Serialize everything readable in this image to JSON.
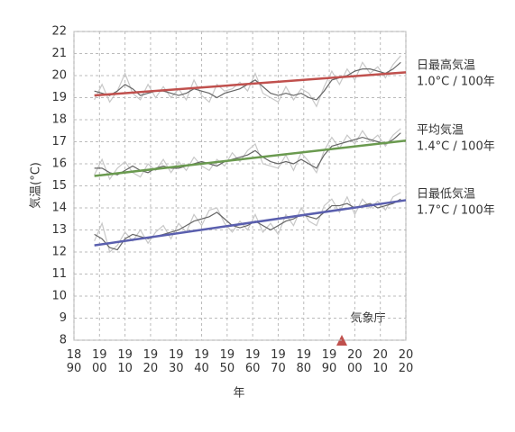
{
  "chart_data": {
    "type": "line",
    "y_label": "気温(°C)",
    "x_label": "年",
    "source": "気象庁",
    "xlim": [
      1890,
      2020
    ],
    "ylim": [
      8,
      22
    ],
    "xticks": [
      {
        "value": 1890,
        "label": "18\n90"
      },
      {
        "value": 1900,
        "label": "19\n00"
      },
      {
        "value": 1910,
        "label": "19\n10"
      },
      {
        "value": 1920,
        "label": "19\n20"
      },
      {
        "value": 1930,
        "label": "19\n30"
      },
      {
        "value": 1940,
        "label": "19\n40"
      },
      {
        "value": 1950,
        "label": "19\n50"
      },
      {
        "value": 1960,
        "label": "19\n60"
      },
      {
        "value": 1970,
        "label": "19\n70"
      },
      {
        "value": 1980,
        "label": "19\n80"
      },
      {
        "value": 1990,
        "label": "19\n90"
      },
      {
        "value": 2000,
        "label": "20\n00"
      },
      {
        "value": 2010,
        "label": "20\n10"
      },
      {
        "value": 2020,
        "label": "20\n20"
      }
    ],
    "yticks": [
      8,
      9,
      10,
      11,
      12,
      13,
      14,
      15,
      16,
      17,
      18,
      19,
      20,
      21,
      22
    ],
    "grid": true,
    "annual_color": "#c8c8c8",
    "moving_average_color": "#666666",
    "x": [
      1898,
      1901,
      1904,
      1907,
      1910,
      1913,
      1916,
      1919,
      1922,
      1925,
      1928,
      1931,
      1934,
      1937,
      1940,
      1943,
      1946,
      1949,
      1952,
      1955,
      1958,
      1961,
      1964,
      1967,
      1970,
      1973,
      1976,
      1979,
      1982,
      1985,
      1988,
      1991,
      1994,
      1997,
      2000,
      2003,
      2006,
      2009,
      2012,
      2015,
      2018
    ],
    "trend_x": [
      1898,
      2020
    ],
    "series": [
      {
        "name": "日最高気温",
        "trend_label": "1.0°C / 100年",
        "color": "#c0504d",
        "annual_values": [
          18.9,
          19.6,
          18.8,
          19.3,
          20.1,
          19.2,
          18.9,
          19.6,
          19.0,
          19.5,
          19.0,
          19.4,
          18.9,
          19.8,
          19.1,
          18.8,
          19.6,
          19.3,
          19.4,
          19.7,
          19.3,
          20.1,
          19.2,
          19.0,
          18.8,
          19.5,
          18.9,
          19.4,
          19.2,
          18.6,
          19.5,
          20.2,
          19.6,
          20.3,
          19.8,
          20.6,
          20.1,
          20.4,
          19.9,
          20.5,
          20.9
        ],
        "moving_average": [
          19.3,
          19.2,
          19.1,
          19.3,
          19.6,
          19.4,
          19.1,
          19.2,
          19.3,
          19.3,
          19.2,
          19.1,
          19.2,
          19.4,
          19.3,
          19.2,
          19.0,
          19.2,
          19.3,
          19.4,
          19.6,
          19.8,
          19.5,
          19.2,
          19.1,
          19.2,
          19.1,
          19.2,
          19.0,
          18.9,
          19.3,
          19.8,
          19.9,
          20.0,
          20.2,
          20.3,
          20.3,
          20.2,
          20.1,
          20.3,
          20.6
        ],
        "trend_values": [
          19.1,
          20.15
        ]
      },
      {
        "name": "平均気温",
        "trend_label": "1.4°C / 100年",
        "color": "#6a9a4f",
        "annual_values": [
          15.5,
          16.2,
          15.3,
          15.8,
          16.1,
          15.6,
          15.4,
          16.0,
          15.7,
          16.2,
          15.6,
          16.1,
          15.7,
          16.3,
          15.9,
          15.7,
          16.2,
          15.9,
          16.5,
          16.1,
          16.6,
          16.9,
          16.0,
          15.9,
          15.8,
          16.4,
          15.7,
          16.5,
          16.1,
          15.6,
          16.6,
          17.2,
          16.7,
          17.3,
          16.9,
          17.5,
          17.0,
          17.3,
          16.8,
          17.3,
          17.6
        ],
        "moving_average": [
          15.8,
          15.8,
          15.6,
          15.5,
          15.7,
          15.9,
          15.7,
          15.6,
          15.8,
          15.9,
          15.8,
          15.8,
          15.9,
          16.0,
          16.1,
          16.0,
          15.9,
          16.1,
          16.2,
          16.3,
          16.4,
          16.6,
          16.3,
          16.1,
          16.0,
          16.1,
          16.0,
          16.2,
          16.0,
          15.8,
          16.4,
          16.8,
          16.9,
          17.0,
          17.1,
          17.2,
          17.1,
          17.0,
          16.9,
          17.1,
          17.4
        ],
        "trend_values": [
          15.45,
          17.05
        ]
      },
      {
        "name": "日最低気温",
        "trend_label": "1.7°C / 100年",
        "color": "#5a5fae",
        "annual_values": [
          12.5,
          13.3,
          12.0,
          12.3,
          12.9,
          12.5,
          13.0,
          12.4,
          12.9,
          13.2,
          12.6,
          13.3,
          12.9,
          13.7,
          13.2,
          13.9,
          14.0,
          13.3,
          12.9,
          13.4,
          13.0,
          13.7,
          12.9,
          13.3,
          12.8,
          13.7,
          13.2,
          14.0,
          13.4,
          13.2,
          14.1,
          14.4,
          13.8,
          14.5,
          13.7,
          14.4,
          14.0,
          14.3,
          13.9,
          14.5,
          14.7
        ],
        "moving_average": [
          12.8,
          12.6,
          12.2,
          12.1,
          12.6,
          12.8,
          12.7,
          12.6,
          12.7,
          12.8,
          12.9,
          13.0,
          13.2,
          13.4,
          13.5,
          13.6,
          13.8,
          13.5,
          13.2,
          13.1,
          13.2,
          13.4,
          13.2,
          13.0,
          13.2,
          13.4,
          13.5,
          13.7,
          13.6,
          13.5,
          13.8,
          14.1,
          14.1,
          14.2,
          14.0,
          14.1,
          14.2,
          14.0,
          14.1,
          14.2,
          14.4
        ],
        "trend_values": [
          12.3,
          14.35
        ]
      }
    ]
  }
}
